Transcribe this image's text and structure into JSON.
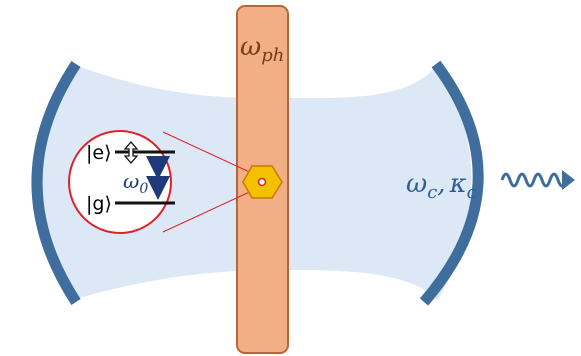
{
  "colors": {
    "cavity_fill": "#dce8f5",
    "mirror": "#3f6e9e",
    "membrane_fill": "#f2ae84",
    "membrane_stroke": "#b5663a",
    "emitter_fill": "#f5c000",
    "emitter_stroke": "#c77b00",
    "zoom_circle": "#e0202a",
    "level_line": "#111111",
    "transition_arrow": "#1f3a7a",
    "mechanical_label": "#7a3d12",
    "cavity_label": "#2f5f96"
  },
  "labels": {
    "mechanical_frequency_base": "ω",
    "mechanical_frequency_sub": "ph",
    "cavity_frequency_base": "ω",
    "cavity_frequency_sub": "c",
    "cavity_separator": ",",
    "cavity_loss_base": "κ",
    "cavity_loss_sub": "c",
    "excited_state": "|e⟩",
    "ground_state": "|g⟩",
    "transition_frequency_base": "ω",
    "transition_frequency_sub": "0"
  }
}
